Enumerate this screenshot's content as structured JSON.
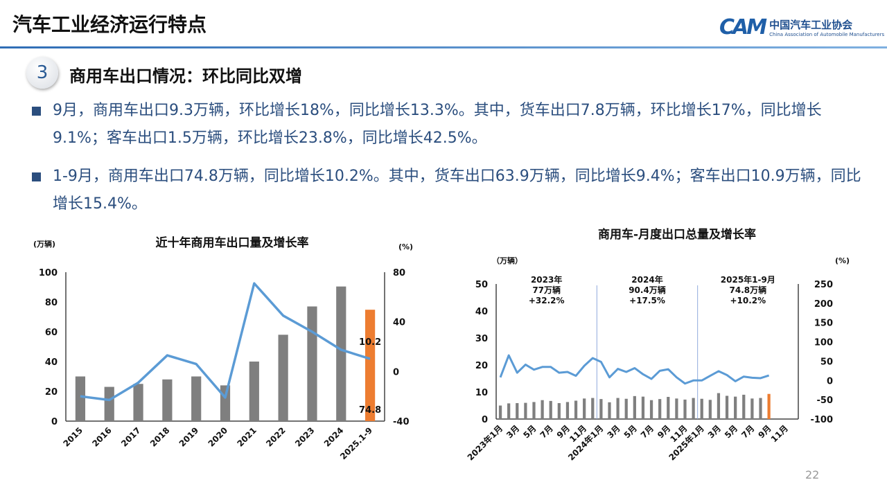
{
  "header": {
    "title": "汽车工业经济运行特点",
    "logo_cn": "中国汽车工业协会",
    "logo_en": "China Association of Automobile Manufacturers",
    "logo_mark": "CAM"
  },
  "section": {
    "number": "3",
    "title": "商用车出口情况：环比同比双增"
  },
  "bullets": [
    "9月，商用车出口9.3万辆，环比增长18%，同比增长13.3%。其中，货车出口7.8万辆，环比增长17%，同比增长9.1%；客车出口1.5万辆，环比增长23.8%，同比增长42.5%。",
    "1-9月，商用车出口74.8万辆，同比增长10.2%。其中，货车出口63.9万辆，同比增长9.4%；客车出口10.9万辆，同比增长15.4%。"
  ],
  "page_number": "22",
  "chart_data": [
    {
      "type": "bar+line",
      "title": "近十年商用车出口量及增长率",
      "ylabel_left": "(万辆)",
      "ylabel_right": "(%)",
      "ylim_left": [
        0,
        100
      ],
      "yticks_left": [
        0,
        20,
        40,
        60,
        80,
        100
      ],
      "ylim_right": [
        -40,
        80
      ],
      "yticks_right": [
        -40,
        0,
        40,
        80
      ],
      "categories": [
        "2015",
        "2016",
        "2017",
        "2018",
        "2019",
        "2020",
        "2021",
        "2022",
        "2023",
        "2024",
        "2025.1-9"
      ],
      "bars": [
        30,
        23,
        25,
        28,
        30,
        24,
        40,
        58,
        77,
        90.4,
        74.8
      ],
      "line": [
        -20,
        -23,
        -9,
        13,
        6,
        -21,
        71,
        45,
        32,
        17.5,
        10.2
      ],
      "data_labels": {
        "bar_last": "74.8",
        "line_last": "10.2"
      },
      "colors": {
        "bar": "#7f7f7f",
        "highlight": "#ed7d31",
        "line": "#5b9bd5"
      }
    },
    {
      "type": "bar+line",
      "title": "商用车-月度出口总量及增长率",
      "ylabel_left": "（万辆）",
      "ylabel_right": "(%)",
      "ylim_left": [
        0,
        50
      ],
      "yticks_left": [
        0,
        10,
        20,
        30,
        40,
        50
      ],
      "ylim_right": [
        -100,
        250
      ],
      "yticks_right": [
        -100,
        -50,
        0,
        50,
        100,
        150,
        200,
        250
      ],
      "categories": [
        "2023年1月",
        "2月",
        "3月",
        "4月",
        "5月",
        "6月",
        "7月",
        "8月",
        "9月",
        "10月",
        "11月",
        "12月",
        "2024年1月",
        "2月",
        "3月",
        "4月",
        "5月",
        "6月",
        "7月",
        "8月",
        "9月",
        "10月",
        "11月",
        "12月",
        "2025年1月",
        "2月",
        "3月",
        "4月",
        "5月",
        "6月",
        "7月",
        "8月",
        "9月",
        "10月",
        "11月",
        "12月"
      ],
      "tick_labels": [
        "2023年1月",
        "3月",
        "5月",
        "7月",
        "9月",
        "11月",
        "2024年1月",
        "3月",
        "5月",
        "7月",
        "9月",
        "11月",
        "2025年1月",
        "3月",
        "5月",
        "7月",
        "9月",
        "11月"
      ],
      "bars": [
        5.0,
        5.8,
        5.9,
        6.0,
        6.3,
        7.0,
        6.7,
        5.9,
        6.3,
        6.8,
        7.6,
        7.8,
        7.4,
        6.2,
        7.8,
        7.5,
        8.5,
        8.3,
        7.0,
        7.4,
        8.2,
        7.6,
        7.2,
        7.8,
        7.5,
        7.1,
        9.6,
        8.6,
        8.3,
        9.0,
        7.6,
        7.8,
        9.3
      ],
      "line": [
        8,
        65,
        20,
        41,
        28,
        35,
        35,
        20,
        22,
        12,
        38,
        58,
        48,
        8,
        30,
        22,
        32,
        16,
        4,
        25,
        29,
        8,
        -8,
        0,
        0,
        12,
        24,
        14,
        -2,
        10,
        7,
        6,
        13
      ],
      "annotations": [
        {
          "lines": [
            "2023年",
            "77万辆",
            "+32.2%"
          ]
        },
        {
          "lines": [
            "2024年",
            "90.4万辆",
            "+17.5%"
          ]
        },
        {
          "lines": [
            "2025年1-9月",
            "74.8万辆",
            "+10.2%"
          ]
        }
      ],
      "colors": {
        "bar": "#7f7f7f",
        "highlight": "#ed7d31",
        "line": "#5b9bd5",
        "divider": "#8faadc"
      }
    }
  ]
}
